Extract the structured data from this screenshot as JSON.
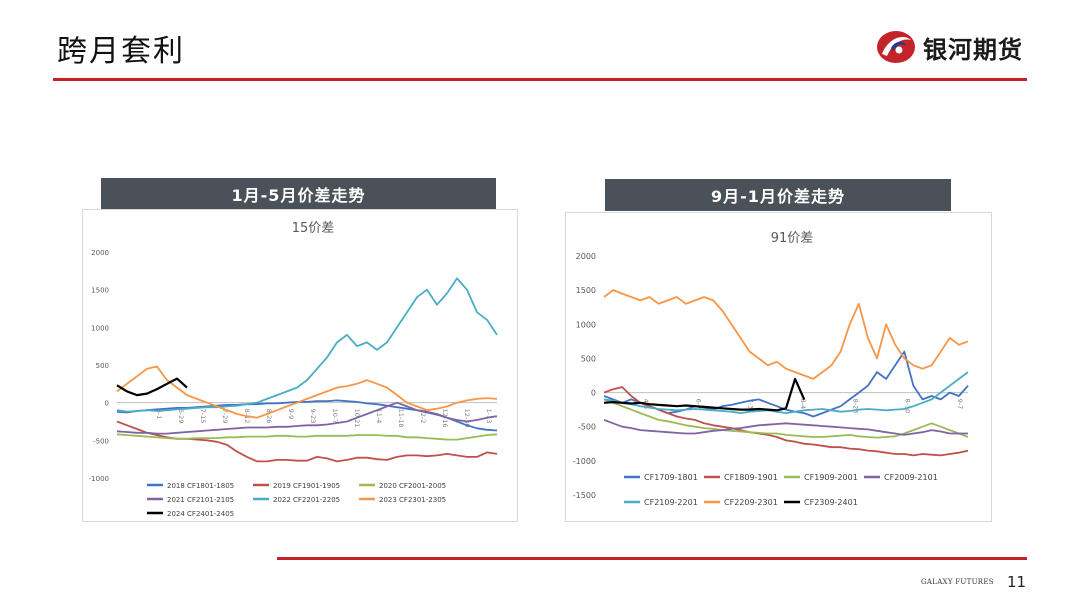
{
  "page": {
    "title": "跨月套利",
    "logo_text": "银河期货",
    "footer_brand": "GALAXY FUTURES",
    "page_number": "11"
  },
  "colors": {
    "accent": "#c3242a",
    "panel_header": "#4a5159"
  },
  "panels": [
    {
      "header": "1月-5月价差走势"
    },
    {
      "header": "9月-1月价差走势"
    }
  ],
  "chart_data": [
    {
      "type": "line",
      "title": "15价差",
      "xlabel": "",
      "ylabel": "",
      "ylim": [
        -1000,
        2000
      ],
      "yticks": [
        2000,
        1500,
        1000,
        500,
        0,
        -500,
        -1000
      ],
      "x_tick_labels": [
        "6-1",
        "6-29",
        "7-15",
        "7-29",
        "8-12",
        "8-26",
        "9-9",
        "9-23",
        "10-7",
        "10-21",
        "11-4",
        "11-18",
        "12-2",
        "12-16",
        "12-30",
        "1-13"
      ],
      "grid": false,
      "legend": "bottom",
      "series": [
        {
          "name": "2018 CF1801-1805",
          "color": "#4472c4",
          "values": [
            -120,
            -130,
            -110,
            -100,
            -90,
            -80,
            -70,
            -70,
            -60,
            -50,
            -40,
            -30,
            -30,
            -20,
            -20,
            -10,
            -10,
            0,
            10,
            10,
            20,
            20,
            30,
            20,
            10,
            -10,
            -20,
            -40,
            -60,
            -80,
            -100,
            -130,
            -160,
            -200,
            -250,
            -300,
            -340,
            -360,
            -370
          ]
        },
        {
          "name": "2019 CF1901-1905",
          "color": "#c0504d",
          "values": [
            -250,
            -300,
            -350,
            -400,
            -430,
            -460,
            -480,
            -480,
            -490,
            -500,
            -520,
            -560,
            -650,
            -720,
            -780,
            -780,
            -760,
            -760,
            -770,
            -770,
            -720,
            -740,
            -780,
            -760,
            -730,
            -730,
            -750,
            -760,
            -720,
            -700,
            -700,
            -710,
            -700,
            -680,
            -700,
            -720,
            -720,
            -660,
            -680
          ]
        },
        {
          "name": "2020 CF2001-2005",
          "color": "#9bbb59",
          "values": [
            -420,
            -430,
            -440,
            -450,
            -460,
            -470,
            -480,
            -480,
            -470,
            -470,
            -470,
            -460,
            -460,
            -450,
            -450,
            -450,
            -440,
            -440,
            -450,
            -450,
            -440,
            -440,
            -440,
            -440,
            -430,
            -430,
            -430,
            -440,
            -440,
            -460,
            -460,
            -470,
            -480,
            -490,
            -490,
            -470,
            -450,
            -430,
            -420
          ]
        },
        {
          "name": "2021 CF2101-2105",
          "color": "#8064a2",
          "values": [
            -380,
            -390,
            -400,
            -400,
            -410,
            -410,
            -400,
            -390,
            -380,
            -370,
            -360,
            -350,
            -340,
            -330,
            -330,
            -330,
            -320,
            -320,
            -310,
            -300,
            -300,
            -290,
            -270,
            -250,
            -200,
            -150,
            -100,
            -50,
            0,
            -50,
            -100,
            -120,
            -150,
            -200,
            -230,
            -250,
            -230,
            -200,
            -180
          ]
        },
        {
          "name": "2022 CF2201-2205",
          "color": "#4bacc6",
          "values": [
            -100,
            -120,
            -110,
            -100,
            -110,
            -100,
            -90,
            -80,
            -70,
            -60,
            -60,
            -50,
            -40,
            -20,
            0,
            50,
            100,
            150,
            200,
            300,
            450,
            600,
            800,
            900,
            750,
            800,
            700,
            800,
            1000,
            1200,
            1400,
            1500,
            1300,
            1450,
            1650,
            1500,
            1200,
            1100,
            900
          ]
        },
        {
          "name": "2023 CF2301-2305",
          "color": "#f79646",
          "values": [
            150,
            250,
            350,
            450,
            480,
            300,
            200,
            100,
            50,
            0,
            -50,
            -100,
            -150,
            -180,
            -200,
            -150,
            -100,
            -50,
            0,
            50,
            100,
            150,
            200,
            220,
            250,
            300,
            250,
            200,
            100,
            0,
            -50,
            -100,
            -80,
            -50,
            0,
            30,
            50,
            60,
            50
          ]
        },
        {
          "name": "2024 CF2401-2405",
          "color": "#000000",
          "values": [
            230,
            150,
            100,
            120,
            180,
            250,
            320,
            200
          ]
        }
      ]
    },
    {
      "type": "line",
      "title": "91价差",
      "xlabel": "",
      "ylabel": "",
      "ylim": [
        -1500,
        2000
      ],
      "yticks": [
        2000,
        1500,
        1000,
        500,
        0,
        -500,
        -1000,
        -1500
      ],
      "x_tick_labels": [
        "4-5",
        "6-7",
        "7-3",
        "8-4",
        "8-23",
        "8-30",
        "9-7"
      ],
      "grid": false,
      "legend": "bottom",
      "series": [
        {
          "name": "CF1709-1801",
          "color": "#4472c4",
          "values": [
            -50,
            -100,
            -150,
            -100,
            -150,
            -200,
            -250,
            -300,
            -280,
            -250,
            -200,
            -220,
            -250,
            -200,
            -180,
            -150,
            -120,
            -100,
            -150,
            -200,
            -250,
            -280,
            -300,
            -350,
            -300,
            -250,
            -200,
            -100,
            0,
            100,
            300,
            200,
            400,
            600,
            100,
            -100,
            -50,
            -100,
            0,
            -50,
            100
          ]
        },
        {
          "name": "CF1809-1901",
          "color": "#c0504d",
          "values": [
            0,
            50,
            80,
            -50,
            -150,
            -200,
            -250,
            -300,
            -350,
            -380,
            -400,
            -450,
            -480,
            -500,
            -520,
            -550,
            -580,
            -600,
            -620,
            -650,
            -700,
            -720,
            -750,
            -760,
            -780,
            -800,
            -800,
            -820,
            -830,
            -850,
            -860,
            -880,
            -900,
            -900,
            -920,
            -900,
            -910,
            -920,
            -900,
            -880,
            -850
          ]
        },
        {
          "name": "CF1909-2001",
          "color": "#9bbb59",
          "values": [
            -100,
            -150,
            -200,
            -250,
            -300,
            -350,
            -400,
            -420,
            -450,
            -480,
            -500,
            -520,
            -530,
            -550,
            -560,
            -570,
            -580,
            -590,
            -600,
            -600,
            -620,
            -630,
            -640,
            -650,
            -650,
            -640,
            -630,
            -620,
            -640,
            -650,
            -660,
            -650,
            -640,
            -600,
            -550,
            -500,
            -450,
            -500,
            -550,
            -600,
            -650
          ]
        },
        {
          "name": "CF2009-2101",
          "color": "#8064a2",
          "values": [
            -400,
            -450,
            -500,
            -520,
            -550,
            -560,
            -570,
            -580,
            -590,
            -600,
            -600,
            -580,
            -560,
            -550,
            -530,
            -520,
            -500,
            -480,
            -470,
            -460,
            -450,
            -460,
            -470,
            -480,
            -490,
            -500,
            -510,
            -520,
            -530,
            -540,
            -560,
            -580,
            -600,
            -620,
            -600,
            -580,
            -550,
            -570,
            -600,
            -600,
            -600
          ]
        },
        {
          "name": "CF2109-2201",
          "color": "#4bacc6",
          "values": [
            -100,
            -120,
            -150,
            -170,
            -200,
            -220,
            -240,
            -250,
            -260,
            -250,
            -240,
            -250,
            -260,
            -270,
            -280,
            -300,
            -280,
            -270,
            -260,
            -280,
            -300,
            -280,
            -260,
            -250,
            -240,
            -260,
            -280,
            -270,
            -250,
            -240,
            -250,
            -260,
            -250,
            -240,
            -200,
            -150,
            -100,
            0,
            100,
            200,
            300
          ]
        },
        {
          "name": "CF2209-2301",
          "color": "#f79646",
          "values": [
            1400,
            1500,
            1450,
            1400,
            1350,
            1400,
            1300,
            1350,
            1400,
            1300,
            1350,
            1400,
            1350,
            1200,
            1000,
            800,
            600,
            500,
            400,
            450,
            350,
            300,
            250,
            200,
            300,
            400,
            600,
            1000,
            1300,
            800,
            500,
            1000,
            700,
            500,
            400,
            350,
            400,
            600,
            800,
            700,
            750
          ]
        },
        {
          "name": "CF2309-2401",
          "color": "#000000",
          "values": [
            -150,
            -140,
            -150,
            -160,
            -150,
            -170,
            -180,
            -190,
            -200,
            -190,
            -200,
            -210,
            -220,
            -230,
            -240,
            -250,
            -250,
            -240,
            -250,
            -260,
            -230,
            200,
            -100
          ]
        }
      ]
    }
  ]
}
